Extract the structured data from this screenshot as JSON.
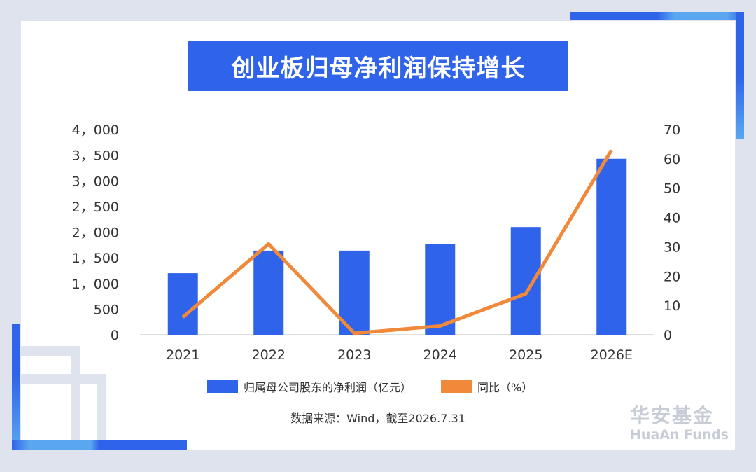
{
  "title": "创业板归母净利润保持增长",
  "legend": {
    "bar_label": "归属母公司股东的净利润（亿元）",
    "line_label": "同比（%）"
  },
  "source": "数据来源：Wind，截至2026.7.31",
  "logo": {
    "cn": "华安基金",
    "en": "HuaAn Funds"
  },
  "colors": {
    "bar": "#2f63ea",
    "line": "#f0893a",
    "title_bg": "#2f63ea"
  },
  "chart_data": {
    "type": "bar",
    "categories": [
      "2021",
      "2022",
      "2023",
      "2024",
      "2025",
      "2026E"
    ],
    "series": [
      {
        "axis": "left",
        "type": "bar",
        "values": [
          1200,
          1640,
          1640,
          1770,
          2100,
          3430
        ]
      },
      {
        "axis": "right",
        "type": "line",
        "values": [
          6,
          31,
          0.5,
          3,
          14,
          63
        ]
      }
    ],
    "y_left": {
      "ylim": [
        0,
        4000
      ],
      "ticks": [
        "0",
        "500",
        "1，000",
        "1，500",
        "2，000",
        "2，500",
        "3，000",
        "3，500",
        "4，000"
      ]
    },
    "y_right": {
      "ylim": [
        0,
        70
      ],
      "ticks": [
        "0",
        "10",
        "20",
        "30",
        "40",
        "50",
        "60",
        "70"
      ]
    },
    "grid": false,
    "legend_position": "bottom"
  }
}
